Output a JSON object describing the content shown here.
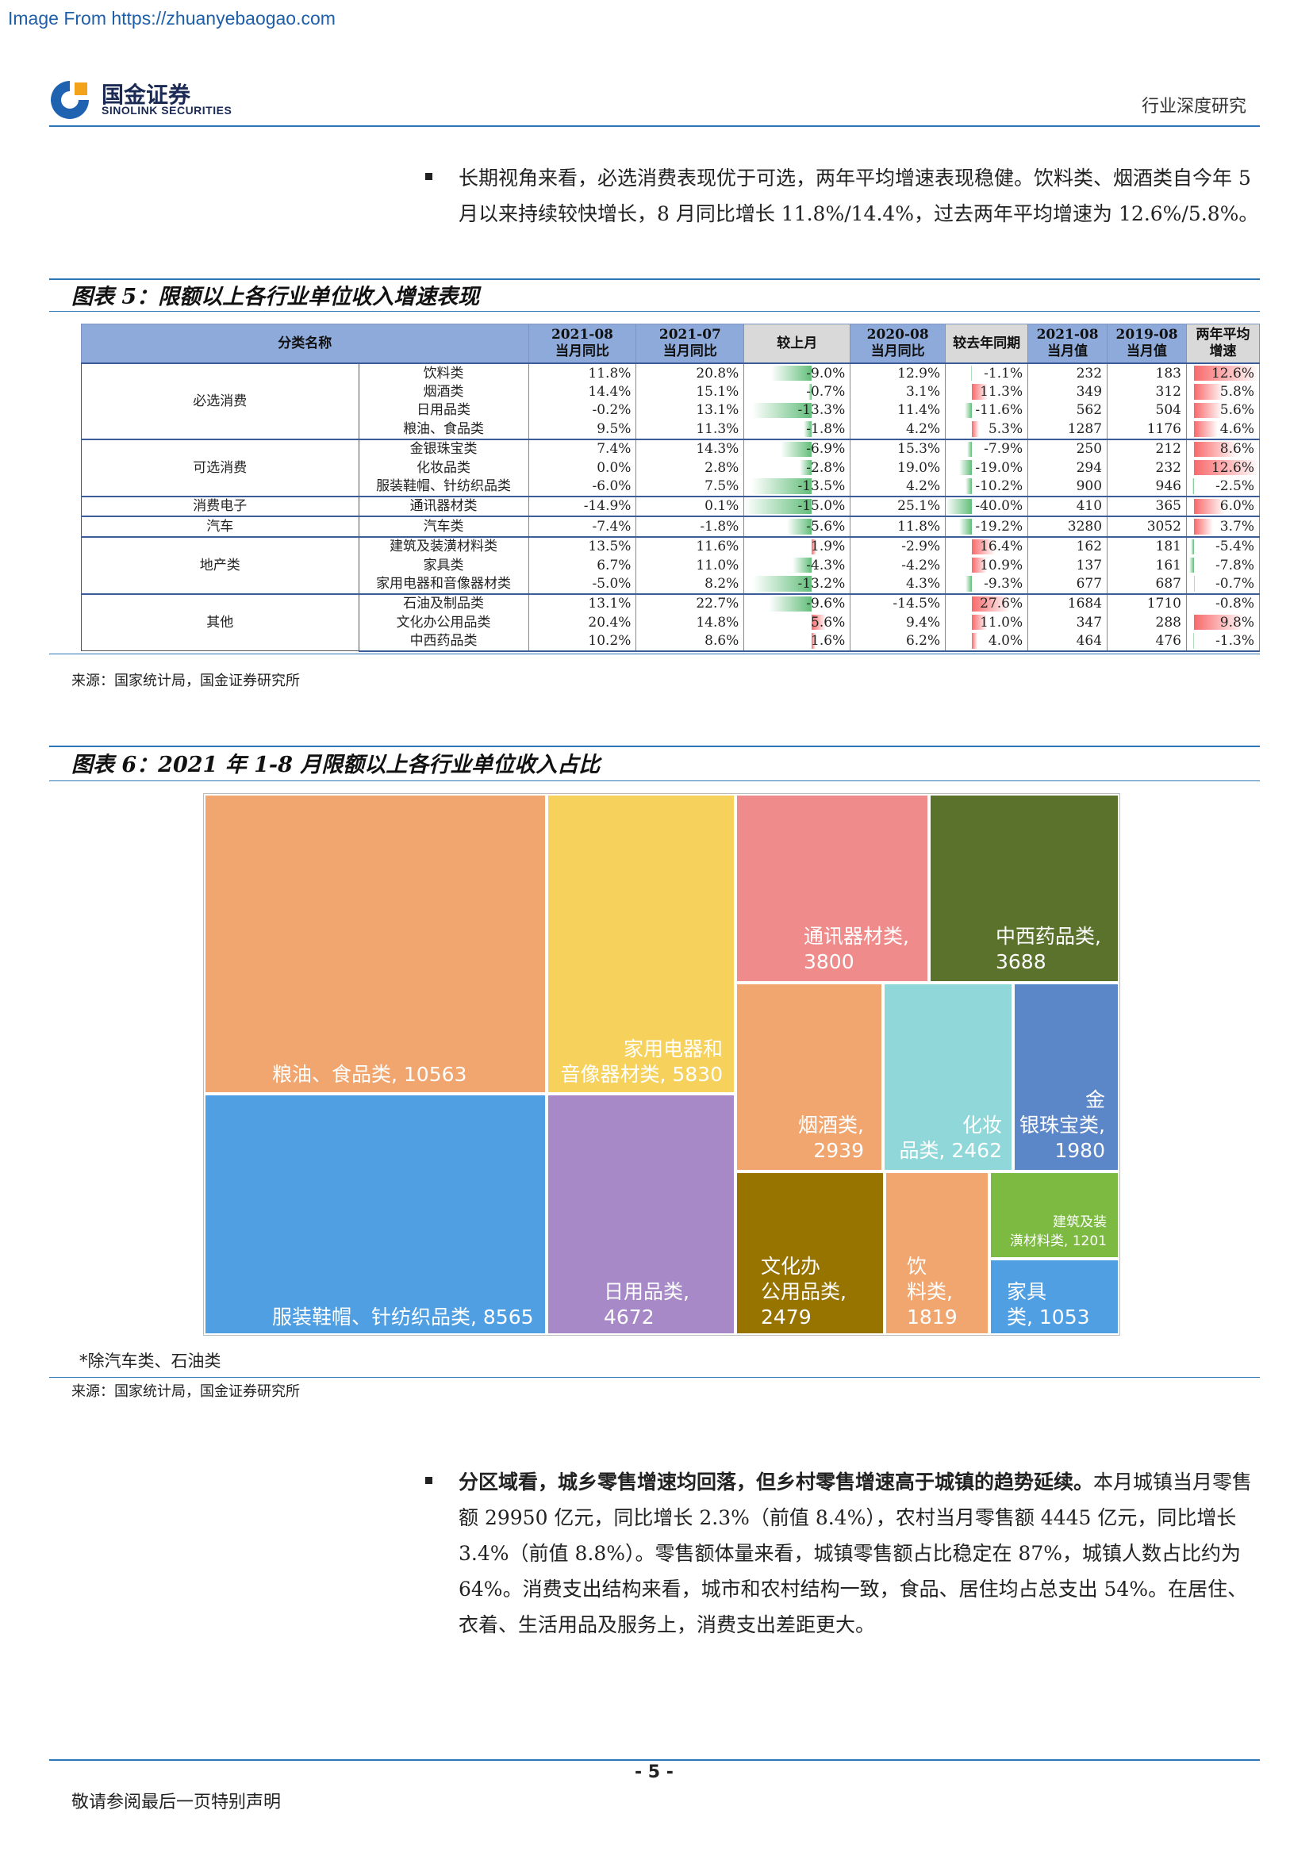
{
  "watermark": "Image From https://zhuanyebaogao.com",
  "logo": {
    "cn": "国金证券",
    "en": "SINOLINK SECURITIES"
  },
  "header": {
    "right": "行业深度研究"
  },
  "para1": "长期视角来看，必选消费表现优于可选，两年平均增速表现稳健。饮料类、烟酒类自今年 5 月以来持续较快增长，8 月同比增长 11.8%/14.4%，过去两年平均增速为 12.6%/5.8%。",
  "fig5": {
    "title": "图表 5：限额以上各行业单位收入增速表现",
    "headers": {
      "cat": "分类名称",
      "c1": [
        "2021-08",
        "当月同比"
      ],
      "c2": [
        "2021-07",
        "当月同比"
      ],
      "c3": "较上月",
      "c4": [
        "2020-08",
        "当月同比"
      ],
      "c5": "较去年同期",
      "c6": [
        "2021-08",
        "当月值"
      ],
      "c7": [
        "2019-08",
        "当月值"
      ],
      "c8": [
        "两年平均",
        "增速"
      ]
    },
    "groups": [
      {
        "name": "必选消费",
        "rows": [
          {
            "item": "饮料类",
            "y2108": "11.8%",
            "y2107": "20.8%",
            "mom": "-9.0%",
            "momv": -9.0,
            "y2008": "12.9%",
            "yoy": "-1.1%",
            "yoyv": -1.1,
            "v2108": "232",
            "v1908": "183",
            "avg": "12.6%",
            "avgv": 12.6
          },
          {
            "item": "烟酒类",
            "y2108": "14.4%",
            "y2107": "15.1%",
            "mom": "-0.7%",
            "momv": -0.7,
            "y2008": "3.1%",
            "yoy": "11.3%",
            "yoyv": 11.3,
            "v2108": "349",
            "v1908": "312",
            "avg": "5.8%",
            "avgv": 5.8
          },
          {
            "item": "日用品类",
            "y2108": "-0.2%",
            "y2107": "13.1%",
            "mom": "-13.3%",
            "momv": -13.3,
            "y2008": "11.4%",
            "yoy": "-11.6%",
            "yoyv": -11.6,
            "v2108": "562",
            "v1908": "504",
            "avg": "5.6%",
            "avgv": 5.6
          },
          {
            "item": "粮油、食品类",
            "y2108": "9.5%",
            "y2107": "11.3%",
            "mom": "-1.8%",
            "momv": -1.8,
            "y2008": "4.2%",
            "yoy": "5.3%",
            "yoyv": 5.3,
            "v2108": "1287",
            "v1908": "1176",
            "avg": "4.6%",
            "avgv": 4.6
          }
        ]
      },
      {
        "name": "可选消费",
        "rows": [
          {
            "item": "金银珠宝类",
            "y2108": "7.4%",
            "y2107": "14.3%",
            "mom": "-6.9%",
            "momv": -6.9,
            "y2008": "15.3%",
            "yoy": "-7.9%",
            "yoyv": -7.9,
            "v2108": "250",
            "v1908": "212",
            "avg": "8.6%",
            "avgv": 8.6
          },
          {
            "item": "化妆品类",
            "y2108": "0.0%",
            "y2107": "2.8%",
            "mom": "-2.8%",
            "momv": -2.8,
            "y2008": "19.0%",
            "yoy": "-19.0%",
            "yoyv": -19.0,
            "v2108": "294",
            "v1908": "232",
            "avg": "12.6%",
            "avgv": 12.6
          },
          {
            "item": "服装鞋帽、针纺织品类",
            "y2108": "-6.0%",
            "y2107": "7.5%",
            "mom": "-13.5%",
            "momv": -13.5,
            "y2008": "4.2%",
            "yoy": "-10.2%",
            "yoyv": -10.2,
            "v2108": "900",
            "v1908": "946",
            "avg": "-2.5%",
            "avgv": -2.5
          }
        ]
      },
      {
        "name": "消费电子",
        "rows": [
          {
            "item": "通讯器材类",
            "y2108": "-14.9%",
            "y2107": "0.1%",
            "mom": "-15.0%",
            "momv": -15.0,
            "y2008": "25.1%",
            "yoy": "-40.0%",
            "yoyv": -40.0,
            "v2108": "410",
            "v1908": "365",
            "avg": "6.0%",
            "avgv": 6.0
          }
        ]
      },
      {
        "name": "汽车",
        "rows": [
          {
            "item": "汽车类",
            "y2108": "-7.4%",
            "y2107": "-1.8%",
            "mom": "-5.6%",
            "momv": -5.6,
            "y2008": "11.8%",
            "yoy": "-19.2%",
            "yoyv": -19.2,
            "v2108": "3280",
            "v1908": "3052",
            "avg": "3.7%",
            "avgv": 3.7
          }
        ]
      },
      {
        "name": "地产类",
        "rows": [
          {
            "item": "建筑及装潢材料类",
            "y2108": "13.5%",
            "y2107": "11.6%",
            "mom": "1.9%",
            "momv": 1.9,
            "y2008": "-2.9%",
            "yoy": "16.4%",
            "yoyv": 16.4,
            "v2108": "162",
            "v1908": "181",
            "avg": "-5.4%",
            "avgv": -5.4
          },
          {
            "item": "家具类",
            "y2108": "6.7%",
            "y2107": "11.0%",
            "mom": "-4.3%",
            "momv": -4.3,
            "y2008": "-4.2%",
            "yoy": "10.9%",
            "yoyv": 10.9,
            "v2108": "137",
            "v1908": "161",
            "avg": "-7.8%",
            "avgv": -7.8
          },
          {
            "item": "家用电器和音像器材类",
            "y2108": "-5.0%",
            "y2107": "8.2%",
            "mom": "-13.2%",
            "momv": -13.2,
            "y2008": "4.3%",
            "yoy": "-9.3%",
            "yoyv": -9.3,
            "v2108": "677",
            "v1908": "687",
            "avg": "-0.7%",
            "avgv": -0.7
          }
        ]
      },
      {
        "name": "其他",
        "rows": [
          {
            "item": "石油及制品类",
            "y2108": "13.1%",
            "y2107": "22.7%",
            "mom": "-9.6%",
            "momv": -9.6,
            "y2008": "-14.5%",
            "yoy": "27.6%",
            "yoyv": 27.6,
            "v2108": "1684",
            "v1908": "1710",
            "avg": "-0.8%",
            "avgv": -0.8
          },
          {
            "item": "文化办公用品类",
            "y2108": "20.4%",
            "y2107": "14.8%",
            "mom": "5.6%",
            "momv": 5.6,
            "y2008": "9.4%",
            "yoy": "11.0%",
            "yoyv": 11.0,
            "v2108": "347",
            "v1908": "288",
            "avg": "9.8%",
            "avgv": 9.8
          },
          {
            "item": "中西药品类",
            "y2108": "10.2%",
            "y2107": "8.6%",
            "mom": "1.6%",
            "momv": 1.6,
            "y2008": "6.2%",
            "yoy": "4.0%",
            "yoyv": 4.0,
            "v2108": "464",
            "v1908": "476",
            "avg": "-1.3%",
            "avgv": -1.3
          }
        ]
      }
    ],
    "source": "来源：国家统计局，国金证券研究所"
  },
  "fig6": {
    "title": "图表 6：2021 年 1-8 月限额以上各行业单位收入占比",
    "note": "*除汽车类、石油类",
    "source": "来源：国家统计局，国金证券研究所"
  },
  "chart_data": {
    "type": "treemap",
    "items": [
      {
        "name": "粮油、食品类",
        "value": 10563,
        "label": "粮油、食品类, 10563",
        "color": "#f0a66e"
      },
      {
        "name": "服装鞋帽、针纺织品类",
        "value": 8565,
        "label": "服装鞋帽、针纺织品类, 8565",
        "color": "#4f9fe2"
      },
      {
        "name": "家用电器和音像器材类",
        "value": 5830,
        "label": "家用电器和音像器材类, 5830",
        "color": "#f6d25c"
      },
      {
        "name": "日用品类",
        "value": 4672,
        "label": "日用品类, 4672",
        "color": "#a689c6"
      },
      {
        "name": "通讯器材类",
        "value": 3800,
        "label": "通讯器材类, 3800",
        "color": "#ef8b8b"
      },
      {
        "name": "中西药品类",
        "value": 3688,
        "label": "中西药品类, 3688",
        "color": "#5b722d"
      },
      {
        "name": "烟酒类",
        "value": 2939,
        "label": "烟酒类, 2939",
        "color": "#f0a66e"
      },
      {
        "name": "化妆品类",
        "value": 2462,
        "label": "化妆品类, 2462",
        "color": "#8fd7d9"
      },
      {
        "name": "金银珠宝类",
        "value": 1980,
        "label": "金银珠宝类, 1980",
        "color": "#5b86c8"
      },
      {
        "name": "文化办公用品类",
        "value": 2479,
        "label": "文化办公用品类, 2479",
        "color": "#977300"
      },
      {
        "name": "饮料类",
        "value": 1819,
        "label": "饮料类, 1819",
        "color": "#f0a66e"
      },
      {
        "name": "建筑及装潢材料类",
        "value": 1201,
        "label": "建筑及装潢材料类, 1201",
        "color": "#7cba42"
      },
      {
        "name": "家具类",
        "value": 1053,
        "label": "家具类, 1053",
        "color": "#4f9fe2"
      }
    ]
  },
  "para2": {
    "bold": "分区域看，城乡零售增速均回落，但乡村零售增速高于城镇的趋势延续。",
    "text": "本月城镇当月零售额 29950 亿元，同比增长 2.3%（前值 8.4%），农村当月零售额 4445 亿元，同比增长 3.4%（前值 8.8%）。零售额体量来看，城镇零售额占比稳定在 87%，城镇人数占比约为 64%。消费支出结构来看，城市和农村结构一致，食品、居住均占总支出 54%。在居住、衣着、生活用品及服务上，消费支出差距更大。"
  },
  "footer": {
    "page": "- 5 -",
    "disclaimer": "敬请参阅最后一页特别声明"
  }
}
